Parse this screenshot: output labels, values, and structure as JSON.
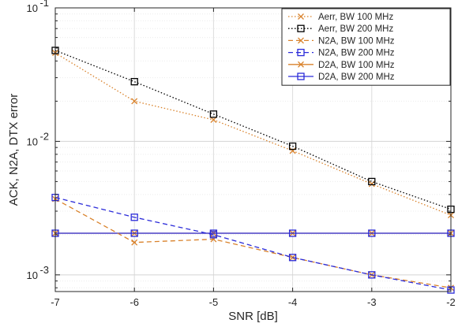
{
  "chart_data": {
    "type": "line",
    "xlabel": "SNR [dB]",
    "ylabel": "ACK, N2A, DTX error",
    "xlim": [
      -7,
      -2
    ],
    "ylim": [
      0.00075,
      0.1
    ],
    "yscale": "log",
    "x_ticks": [
      -7,
      -6,
      -5,
      -4,
      -3,
      -2
    ],
    "y_ticks": [
      0.001,
      0.01,
      0.1
    ],
    "y_tick_labels": [
      {
        "base": "10",
        "exp": "-3"
      },
      {
        "base": "10",
        "exp": "-2"
      },
      {
        "base": "10",
        "exp": "-1"
      }
    ],
    "grid": true,
    "legend_position": "top-right",
    "x": [
      -7,
      -6,
      -5,
      -4,
      -3,
      -2
    ],
    "series": [
      {
        "name": "Aerr, BW 100 MHz",
        "color": "#D9822B",
        "linestyle": "dotted",
        "marker": "x",
        "values": [
          0.046,
          0.02,
          0.0145,
          0.0085,
          0.0048,
          0.0028
        ]
      },
      {
        "name": "Aerr, BW 200 MHz",
        "color": "#000000",
        "linestyle": "dotted",
        "marker": "square",
        "values": [
          0.048,
          0.028,
          0.016,
          0.0092,
          0.005,
          0.0031
        ]
      },
      {
        "name": "N2A, BW 100 MHz",
        "color": "#D9822B",
        "linestyle": "dashed",
        "marker": "x",
        "values": [
          0.0037,
          0.00175,
          0.00185,
          0.00135,
          0.001,
          0.0008
        ]
      },
      {
        "name": "N2A, BW 200 MHz",
        "color": "#2B2BD9",
        "linestyle": "dashed",
        "marker": "square",
        "values": [
          0.0038,
          0.0027,
          0.002,
          0.00135,
          0.001,
          0.00077
        ]
      },
      {
        "name": "D2A, BW 100 MHz",
        "color": "#D9822B",
        "linestyle": "solid",
        "marker": "x",
        "values": [
          0.00205,
          0.00205,
          0.00205,
          0.00205,
          0.00205,
          0.00205
        ]
      },
      {
        "name": "D2A, BW 200 MHz",
        "color": "#2B2BD9",
        "linestyle": "solid",
        "marker": "square",
        "values": [
          0.00205,
          0.00205,
          0.00205,
          0.00205,
          0.00205,
          0.00205
        ]
      }
    ]
  }
}
